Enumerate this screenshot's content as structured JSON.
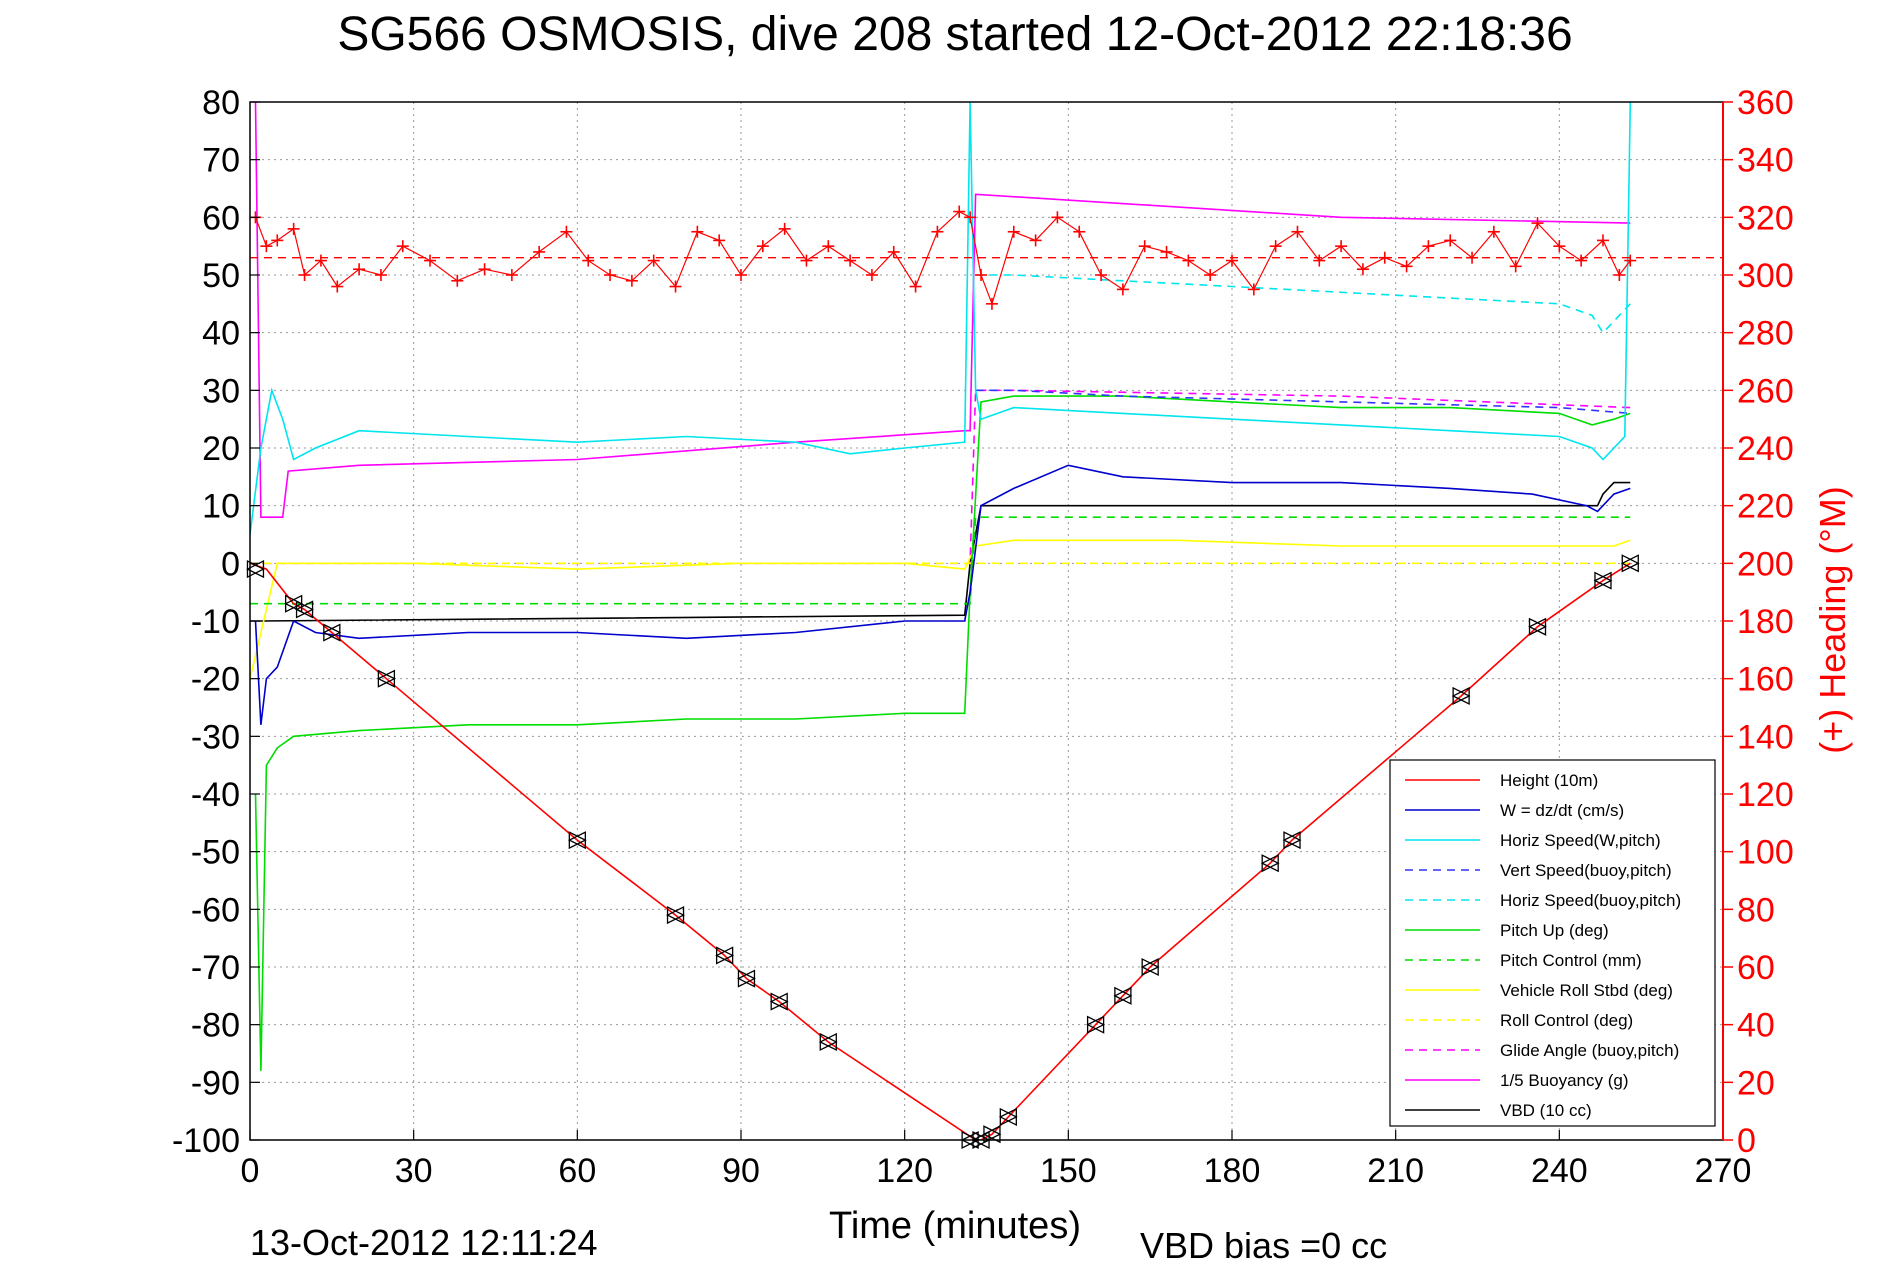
{
  "chart_data": {
    "type": "line",
    "title": "SG566 OSMOSIS, dive 208 started 12-Oct-2012 22:18:36",
    "xlabel": "Time (minutes)",
    "ylabel_right": "(+) Heading (°M)",
    "footer_left": "13-Oct-2012 12:11:24",
    "footer_right": "VBD bias =0 cc",
    "x_range": [
      0,
      270
    ],
    "x_ticks": [
      0,
      30,
      60,
      90,
      120,
      150,
      180,
      210,
      240,
      270
    ],
    "y_left_range": [
      -100,
      80
    ],
    "y_left_ticks": [
      -100,
      -90,
      -80,
      -70,
      -60,
      -50,
      -40,
      -30,
      -20,
      -10,
      0,
      10,
      20,
      30,
      40,
      50,
      60,
      70,
      80
    ],
    "y_right_range": [
      0,
      360
    ],
    "y_right_ticks": [
      0,
      20,
      40,
      60,
      80,
      100,
      120,
      140,
      160,
      180,
      200,
      220,
      240,
      260,
      280,
      300,
      320,
      340,
      360
    ],
    "grid": true,
    "legend_position": "bottom-right",
    "colors": {
      "red": "#ff0000",
      "blue": "#0000cc",
      "cyan": "#00e5ee",
      "green": "#00dd00",
      "yellow": "#ffff00",
      "magenta": "#ff00ff",
      "black": "#000000",
      "grid": "#999999",
      "right_axis": "#ff0000"
    },
    "series": [
      {
        "name": "Height (10m)",
        "color": "#ff0000",
        "dash": false,
        "x": [
          0,
          3,
          8,
          10,
          15,
          25,
          60,
          78,
          87,
          91,
          97,
          106,
          133,
          134,
          136,
          139,
          155,
          160,
          165,
          187,
          191,
          222,
          236,
          248,
          253
        ],
        "y": [
          0,
          -1,
          -7,
          -8,
          -12,
          -20,
          -48,
          -61,
          -68,
          -72,
          -76,
          -83,
          -100,
          -100,
          -99,
          -96,
          -80,
          -75,
          -70,
          -52,
          -48,
          -23,
          -11,
          -3,
          0
        ]
      },
      {
        "name": "W = dz/dt (cm/s)",
        "color": "#0000cc",
        "dash": false,
        "x": [
          1,
          2,
          3,
          5,
          8,
          12,
          20,
          40,
          60,
          80,
          100,
          120,
          131,
          132,
          134,
          140,
          150,
          160,
          180,
          200,
          220,
          235,
          245,
          247,
          250,
          253
        ],
        "y": [
          -10,
          -28,
          -20,
          -18,
          -10,
          -12,
          -13,
          -12,
          -12,
          -13,
          -12,
          -10,
          -10,
          -5,
          10,
          13,
          17,
          15,
          14,
          14,
          13,
          12,
          10,
          9,
          12,
          13
        ]
      },
      {
        "name": "Horiz Speed(W,pitch)",
        "color": "#00e5ee",
        "dash": false,
        "x": [
          0,
          2,
          4,
          6,
          8,
          12,
          20,
          40,
          60,
          80,
          100,
          110,
          120,
          131,
          132,
          133,
          134,
          140,
          160,
          180,
          200,
          220,
          240,
          246,
          248,
          252,
          253
        ],
        "y": [
          5,
          20,
          30,
          25,
          18,
          20,
          23,
          22,
          21,
          22,
          21,
          19,
          20,
          21,
          80,
          30,
          25,
          27,
          26,
          25,
          24,
          23,
          22,
          20,
          18,
          22,
          80
        ]
      },
      {
        "name": "Vert Speed(buoy,pitch)",
        "color": "#3333ff",
        "dash": true,
        "x": [
          133,
          140,
          160,
          200,
          240,
          253
        ],
        "y": [
          30,
          30,
          29,
          28,
          27,
          26
        ]
      },
      {
        "name": "Horiz Speed(buoy,pitch)",
        "color": "#00e5ee",
        "dash": true,
        "x": [
          133,
          140,
          160,
          180,
          200,
          220,
          240,
          246,
          248,
          253
        ],
        "y": [
          50,
          50,
          49,
          48,
          47,
          46,
          45,
          43,
          40,
          45
        ]
      },
      {
        "name": "Pitch Up (deg)",
        "color": "#00dd00",
        "dash": false,
        "x": [
          1,
          2,
          3,
          5,
          8,
          20,
          40,
          60,
          80,
          100,
          120,
          131,
          132,
          134,
          140,
          160,
          180,
          200,
          220,
          240,
          246,
          250,
          253
        ],
        "y": [
          -40,
          -88,
          -35,
          -32,
          -30,
          -29,
          -28,
          -28,
          -27,
          -27,
          -26,
          -26,
          -5,
          28,
          29,
          29,
          28,
          27,
          27,
          26,
          24,
          25,
          26
        ]
      },
      {
        "name": "Pitch Control (mm)",
        "color": "#00dd00",
        "dash": true,
        "x": [
          0,
          5,
          132,
          133,
          253
        ],
        "y": [
          -7,
          -7,
          -7,
          8,
          8
        ]
      },
      {
        "name": "Vehicle Roll Stbd (deg)",
        "color": "#ffff00",
        "dash": false,
        "x": [
          0,
          5,
          30,
          60,
          90,
          120,
          131,
          133,
          140,
          170,
          200,
          230,
          250,
          253
        ],
        "y": [
          -20,
          0,
          0,
          -1,
          0,
          0,
          -1,
          3,
          4,
          4,
          3,
          3,
          3,
          4
        ]
      },
      {
        "name": "Roll Control (deg)",
        "color": "#ffff00",
        "dash": true,
        "x": [
          0,
          132,
          133,
          253
        ],
        "y": [
          0,
          0,
          0,
          0
        ]
      },
      {
        "name": "Glide Angle (buoy,pitch)",
        "color": "#ff00ff",
        "dash": true,
        "x": [
          0,
          132,
          133,
          140,
          200,
          253
        ],
        "y": [
          0,
          0,
          30,
          30,
          29,
          27
        ]
      },
      {
        "name": "1/5 Buoyancy (g)",
        "color": "#ff00ff",
        "dash": false,
        "x": [
          1,
          2,
          6,
          7,
          20,
          60,
          100,
          131,
          132,
          133,
          200,
          253
        ],
        "y": [
          80,
          8,
          8,
          16,
          17,
          18,
          21,
          23,
          23,
          64,
          60,
          59
        ]
      },
      {
        "name": "VBD (10 cc)",
        "color": "#000000",
        "dash": false,
        "x": [
          0,
          2,
          131,
          132,
          134,
          247,
          248,
          250,
          253
        ],
        "y": [
          -10,
          -10,
          -9,
          0,
          10,
          10,
          12,
          14,
          14
        ]
      }
    ],
    "heading_series": {
      "name": "(+) Heading",
      "color": "#ff0000",
      "marker": "+",
      "x": [
        1,
        3,
        5,
        8,
        10,
        13,
        16,
        20,
        24,
        28,
        33,
        38,
        43,
        48,
        53,
        58,
        62,
        66,
        70,
        74,
        78,
        82,
        86,
        90,
        94,
        98,
        102,
        106,
        110,
        114,
        118,
        122,
        126,
        130,
        132,
        134,
        136,
        140,
        144,
        148,
        152,
        156,
        160,
        164,
        168,
        172,
        176,
        180,
        184,
        188,
        192,
        196,
        200,
        204,
        208,
        212,
        216,
        220,
        224,
        228,
        232,
        236,
        240,
        244,
        248,
        251,
        253
      ],
      "y": [
        320,
        310,
        312,
        316,
        300,
        305,
        296,
        302,
        300,
        310,
        305,
        298,
        302,
        300,
        308,
        315,
        305,
        300,
        298,
        305,
        296,
        315,
        312,
        300,
        310,
        316,
        305,
        310,
        305,
        300,
        308,
        296,
        315,
        322,
        320,
        300,
        290,
        315,
        312,
        320,
        315,
        300,
        295,
        310,
        308,
        305,
        300,
        305,
        295,
        310,
        315,
        305,
        310,
        302,
        306,
        303,
        310,
        312,
        306,
        315,
        303,
        318,
        310,
        305,
        312,
        300,
        305
      ]
    },
    "heading_reference": {
      "color": "#ff0000",
      "dash": true,
      "value_right": 306
    },
    "markers": {
      "symbol": "triangles",
      "x": [
        1,
        8,
        10,
        15,
        25,
        60,
        78,
        87,
        91,
        97,
        106,
        132,
        134,
        136,
        139,
        155,
        160,
        165,
        187,
        191,
        222,
        236,
        248,
        253
      ],
      "y": [
        -1,
        -7,
        -8,
        -12,
        -20,
        -48,
        -61,
        -68,
        -72,
        -76,
        -83,
        -100,
        -100,
        -99,
        -96,
        -80,
        -75,
        -70,
        -52,
        -48,
        -23,
        -11,
        -3,
        0
      ]
    }
  }
}
